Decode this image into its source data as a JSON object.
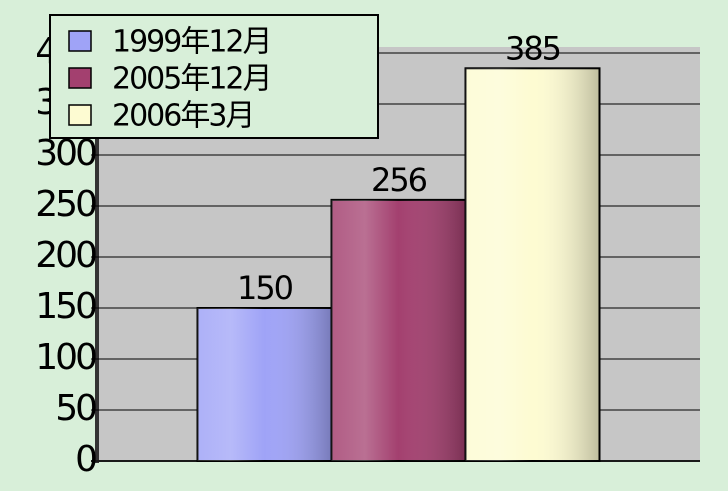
{
  "chart_data": {
    "type": "bar",
    "categories": [
      null
    ],
    "series": [
      {
        "name": "1999年12月",
        "color": "#9fa3f7",
        "values": [
          150
        ]
      },
      {
        "name": "2005年12月",
        "color": "#a3406f",
        "values": [
          256
        ]
      },
      {
        "name": "2006年3月",
        "color": "#fdfbd2",
        "values": [
          385
        ]
      }
    ],
    "ylim": [
      0,
      400
    ],
    "yticks": [
      0,
      50,
      100,
      150,
      200,
      250,
      300,
      350,
      400
    ],
    "grid": true,
    "legend": "top-left",
    "data_labels": true
  }
}
